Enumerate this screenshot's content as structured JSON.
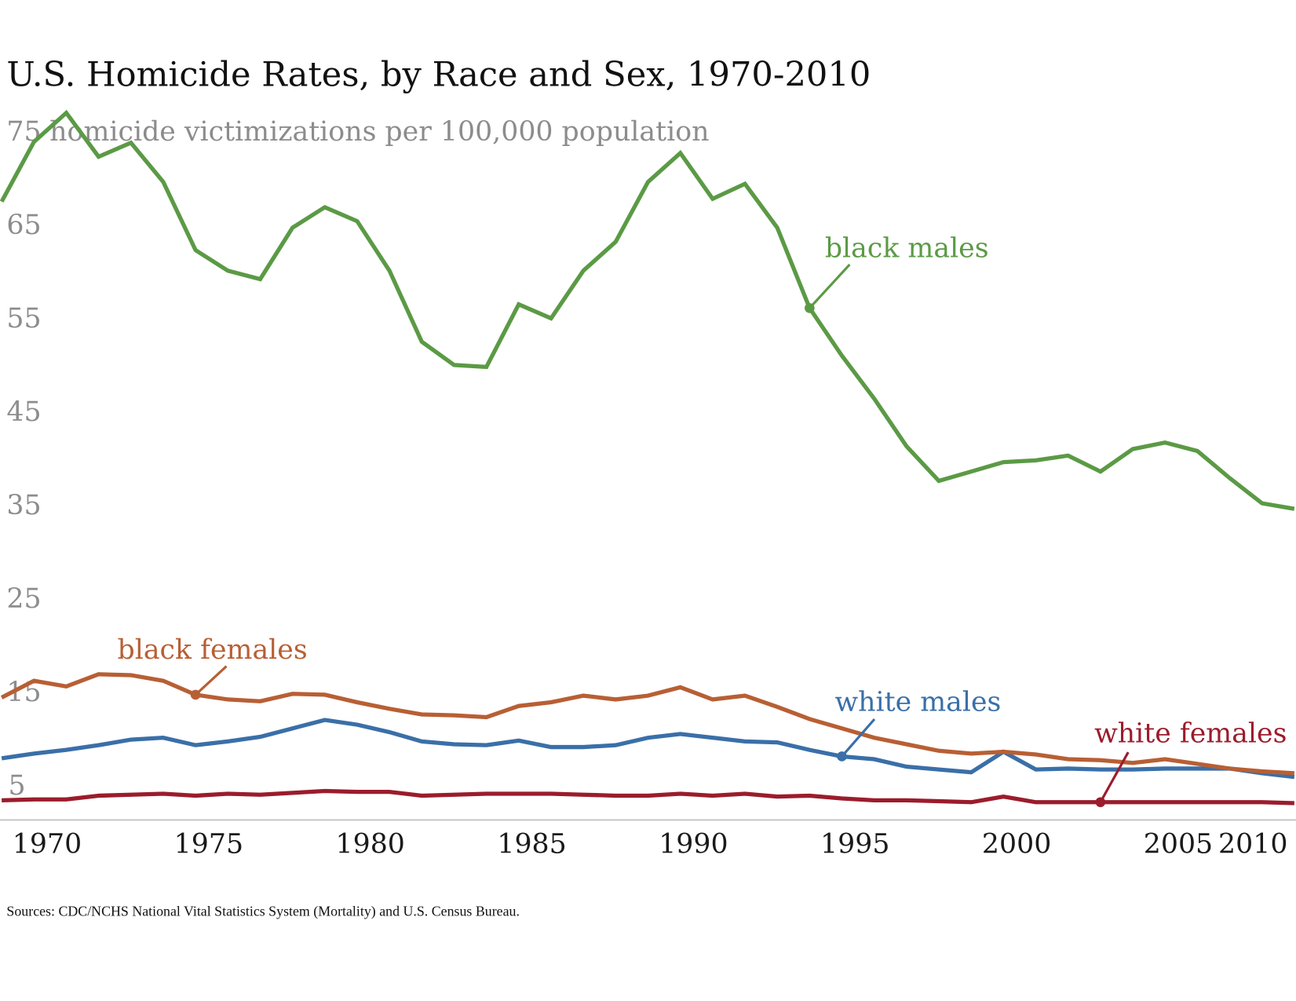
{
  "chart_data": {
    "type": "line",
    "title": "U.S. Homicide Rates, by Race and Sex, 1970-2010",
    "ylabel": "homicide victimizations per 100,000 population",
    "xlabel": "",
    "source": "Sources: CDC/NCHS National Vital Statistics System (Mortality) and U.S. Census Bureau.",
    "x": [
      1970,
      1971,
      1972,
      1973,
      1974,
      1975,
      1976,
      1977,
      1978,
      1979,
      1980,
      1981,
      1982,
      1983,
      1984,
      1985,
      1986,
      1987,
      1988,
      1989,
      1990,
      1991,
      1992,
      1993,
      1994,
      1995,
      1996,
      1997,
      1998,
      1999,
      2000,
      2001,
      2002,
      2003,
      2004,
      2005,
      2006,
      2007,
      2008,
      2009,
      2010
    ],
    "xticks": [
      "1970",
      "1975",
      "1980",
      "1985",
      "1990",
      "1995",
      "2000",
      "2005",
      "2010"
    ],
    "yticks": [
      "75",
      "65",
      "55",
      "45",
      "35",
      "25",
      "15",
      "5"
    ],
    "ylim": [
      0,
      78
    ],
    "grid": false,
    "legend": "inline-annotations",
    "series": [
      {
        "name": "black males",
        "color": "#5b9a45",
        "annotation_year": 1995,
        "values": [
          67.4,
          73.8,
          76.9,
          72.2,
          73.7,
          69.5,
          62.2,
          60.0,
          59.1,
          64.6,
          66.8,
          65.3,
          60.0,
          52.4,
          49.9,
          49.7,
          56.4,
          54.9,
          60.0,
          63.1,
          69.5,
          72.6,
          67.7,
          69.3,
          64.6,
          56.0,
          50.9,
          46.3,
          41.2,
          37.5,
          38.5,
          39.5,
          39.7,
          40.2,
          38.5,
          40.9,
          41.6,
          40.7,
          37.8,
          35.1,
          34.5
        ]
      },
      {
        "name": "black females",
        "color": "#b85f34",
        "annotation_year": 1976,
        "values": [
          14.3,
          16.1,
          15.5,
          16.8,
          16.7,
          16.1,
          14.6,
          14.1,
          13.9,
          14.7,
          14.6,
          13.8,
          13.1,
          12.5,
          12.4,
          12.2,
          13.4,
          13.8,
          14.5,
          14.1,
          14.5,
          15.4,
          14.1,
          14.5,
          13.3,
          12.0,
          11.0,
          10.0,
          9.3,
          8.6,
          8.3,
          8.5,
          8.2,
          7.7,
          7.6,
          7.3,
          7.7,
          7.2,
          6.7,
          6.4,
          6.2
        ]
      },
      {
        "name": "white males",
        "color": "#3a6fa8",
        "annotation_year": 1996,
        "values": [
          7.8,
          8.3,
          8.7,
          9.2,
          9.8,
          10.0,
          9.2,
          9.6,
          10.1,
          11.0,
          11.9,
          11.4,
          10.6,
          9.6,
          9.3,
          9.2,
          9.7,
          9.0,
          9.0,
          9.2,
          10.0,
          10.4,
          10.0,
          9.6,
          9.5,
          8.7,
          8.0,
          7.7,
          6.9,
          6.6,
          6.3,
          8.5,
          6.6,
          6.7,
          6.6,
          6.6,
          6.7,
          6.7,
          6.7,
          6.2,
          5.8
        ]
      },
      {
        "name": "white females",
        "color": "#9b1c2c",
        "annotation_year": 2004,
        "values": [
          3.3,
          3.4,
          3.4,
          3.8,
          3.9,
          4.0,
          3.8,
          4.0,
          3.9,
          4.1,
          4.3,
          4.2,
          4.2,
          3.8,
          3.9,
          4.0,
          4.0,
          4.0,
          3.9,
          3.8,
          3.8,
          4.0,
          3.8,
          4.0,
          3.7,
          3.8,
          3.5,
          3.3,
          3.3,
          3.2,
          3.1,
          3.7,
          3.1,
          3.1,
          3.1,
          3.1,
          3.1,
          3.1,
          3.1,
          3.1,
          3.0
        ]
      }
    ]
  }
}
